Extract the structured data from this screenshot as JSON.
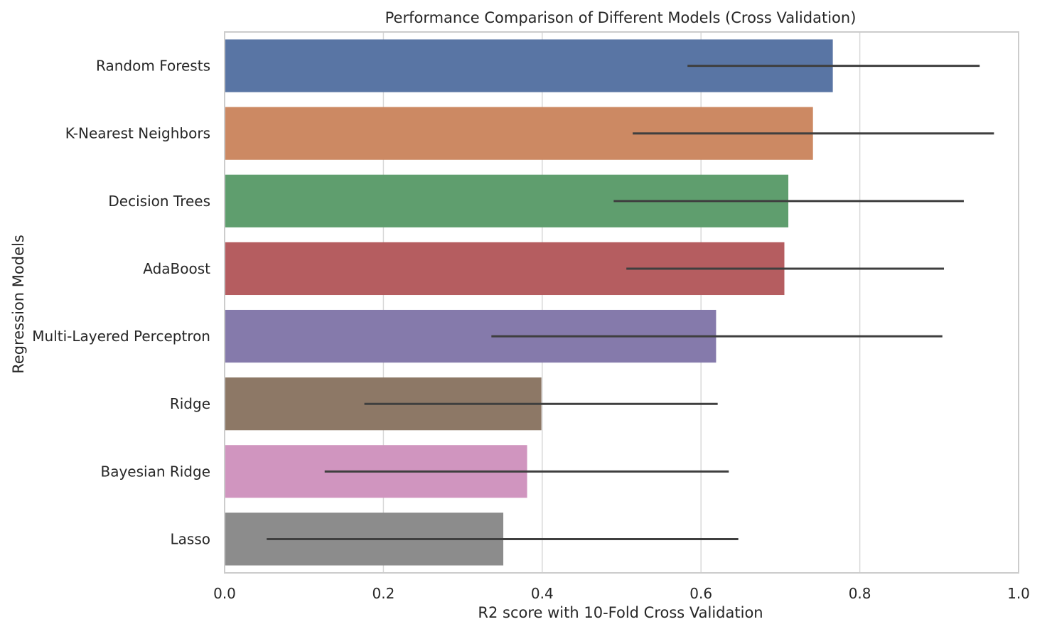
{
  "chart_data": {
    "type": "bar",
    "orientation": "horizontal",
    "title": "Performance Comparison of Different Models (Cross Validation)",
    "xlabel": "R2 score with 10-Fold Cross Validation",
    "ylabel": "Regression Models",
    "xlim": [
      0.0,
      1.0
    ],
    "x_ticks": [
      "0.0",
      "0.2",
      "0.4",
      "0.6",
      "0.8",
      "1.0"
    ],
    "grid": true,
    "categories": [
      "Random Forests",
      "K-Nearest Neighbors",
      "Decision Trees",
      "AdaBoost",
      "Multi-Layered Perceptron",
      "Ridge",
      "Bayesian Ridge",
      "Lasso"
    ],
    "values": [
      0.766,
      0.741,
      0.71,
      0.705,
      0.619,
      0.399,
      0.381,
      0.351
    ],
    "error_low": [
      0.583,
      0.514,
      0.49,
      0.506,
      0.336,
      0.176,
      0.126,
      0.053
    ],
    "error_high": [
      0.951,
      0.969,
      0.931,
      0.906,
      0.904,
      0.621,
      0.635,
      0.647
    ],
    "colors": [
      "#5975a4",
      "#cc8963",
      "#5f9e6e",
      "#b55d60",
      "#857aab",
      "#8d7866",
      "#d095bf",
      "#8c8c8c"
    ],
    "error_color": "#3f3f3f",
    "grid_color": "#d9d9d9",
    "spine_color": "#cccccc"
  }
}
